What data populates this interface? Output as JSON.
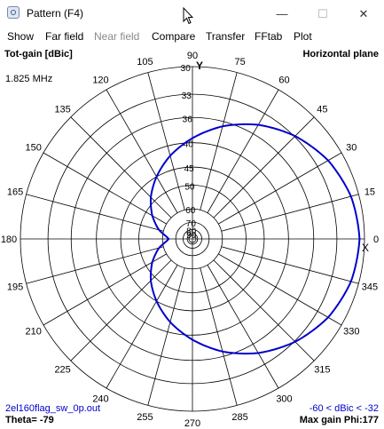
{
  "window": {
    "title": "Pattern    (F4)",
    "buttons": {
      "minimize": "—",
      "maximize": "☐",
      "close": "✕"
    }
  },
  "menu": {
    "items": [
      {
        "label": "Show",
        "enabled": true
      },
      {
        "label": "Far field",
        "enabled": true
      },
      {
        "label": "Near field",
        "enabled": false
      },
      {
        "label": "Compare",
        "enabled": true
      },
      {
        "label": "Transfer",
        "enabled": true
      },
      {
        "label": "FFtab",
        "enabled": true
      },
      {
        "label": "Plot",
        "enabled": true
      }
    ]
  },
  "plot": {
    "top_left_label": "Tot-gain [dBic]",
    "top_right_label": "Horizontal plane",
    "frequency": "1.825 MHz",
    "axis_label": "Y",
    "marker": "X",
    "bottom_left_filename": "2el160flag_sw_0p.out",
    "bottom_right_range": "-60 < dBic < -32",
    "theta_label": "Theta= -79",
    "max_gain_label": "Max gain Phi:177",
    "colors": {
      "trace": "#0000cc",
      "grid": "#000000",
      "range_text": "#0000cc"
    }
  },
  "chart_data": {
    "type": "polar",
    "title": "Horizontal plane",
    "radial_label": "Tot-gain [dBic]",
    "angle_ticks": [
      "0",
      "15",
      "30",
      "45",
      "60",
      "75",
      "90",
      "105",
      "120",
      "135",
      "150",
      "165",
      "180",
      "195",
      "210",
      "225",
      "240",
      "255",
      "270",
      "285",
      "300",
      "315",
      "330",
      "345"
    ],
    "radial_ticks": [
      "30",
      "33",
      "36",
      "40",
      "45",
      "50",
      "60",
      "70",
      "80",
      "90"
    ],
    "radial_values": [
      -30,
      -33,
      -36,
      -40,
      -45,
      -50,
      -60,
      -70,
      -80,
      -90
    ],
    "series": [
      {
        "phi_deg": [
          0,
          15,
          30,
          45,
          60,
          75,
          90,
          105,
          120,
          135,
          150,
          165,
          175,
          180,
          185,
          195,
          210,
          225,
          240,
          255,
          270,
          285,
          300,
          315,
          330,
          345
        ],
        "gain_dbic": [
          -30.5,
          -30.8,
          -31.6,
          -32.9,
          -34.6,
          -36.7,
          -39.2,
          -41.9,
          -45.0,
          -48.4,
          -52.5,
          -57.5,
          -62.5,
          -64.0,
          -62.5,
          -57.5,
          -52.5,
          -48.4,
          -45.0,
          -41.9,
          -39.2,
          -36.7,
          -34.6,
          -32.9,
          -31.6,
          -30.8
        ]
      }
    ]
  }
}
